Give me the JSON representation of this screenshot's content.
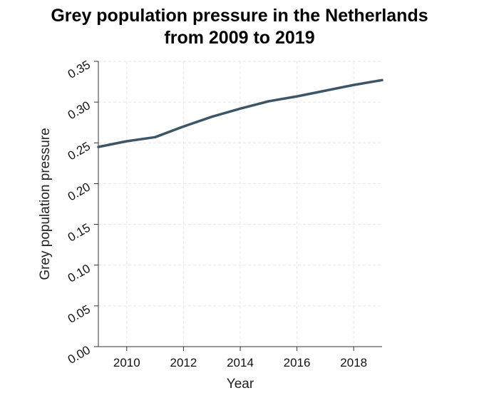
{
  "chart_data": {
    "type": "line",
    "title_lines": [
      "Grey population pressure in the Netherlands",
      "from 2009 to 2019"
    ],
    "xlabel": "Year",
    "ylabel": "Grey population pressure",
    "xlim": [
      2009,
      2019
    ],
    "ylim": [
      0,
      0.35
    ],
    "x_ticks": [
      2010,
      2012,
      2014,
      2016,
      2018
    ],
    "y_ticks": [
      "0.00",
      "0.05",
      "0.10",
      "0.15",
      "0.20",
      "0.25",
      "0.30",
      "0.35"
    ],
    "grid": true,
    "line_color": "#3d5566",
    "series": [
      {
        "x": [
          2009,
          2010,
          2011,
          2012,
          2013,
          2014,
          2015,
          2016,
          2017,
          2018,
          2019
        ],
        "values": [
          0.245,
          0.252,
          0.257,
          0.27,
          0.282,
          0.292,
          0.301,
          0.307,
          0.314,
          0.321,
          0.327
        ]
      }
    ]
  }
}
